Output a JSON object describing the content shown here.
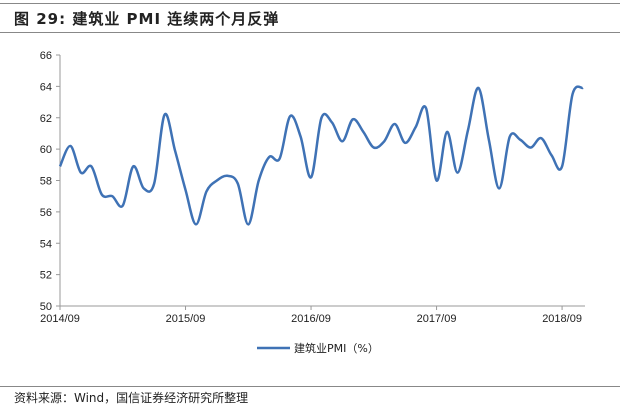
{
  "title": "图 29:  建筑业 PMI 连续两个月反弹",
  "source": "资料来源：Wind，国信证券经济研究所整理",
  "chart_data": {
    "type": "line",
    "title": "",
    "xlabel": "",
    "ylabel": "",
    "ylim": [
      50,
      66
    ],
    "yticks": [
      50,
      52,
      54,
      56,
      58,
      60,
      62,
      64,
      66
    ],
    "x_tick_labels": [
      "2014/09",
      "2015/09",
      "2016/09",
      "2017/09",
      "2018/09"
    ],
    "x_start": "2014/09",
    "x_end": "2018/11",
    "grid": false,
    "legend": "bottom-center",
    "series": [
      {
        "name": "建筑业PMI（%）",
        "color": "#3F72B5",
        "values": [
          58.9,
          60.2,
          58.5,
          58.9,
          57.1,
          57.0,
          56.4,
          58.9,
          57.5,
          57.8,
          62.2,
          59.9,
          57.4,
          55.2,
          57.3,
          58.0,
          58.3,
          57.8,
          55.2,
          58.0,
          59.5,
          59.4,
          62.1,
          60.8,
          58.2,
          62.0,
          61.7,
          60.5,
          61.9,
          61.1,
          60.1,
          60.5,
          61.6,
          60.4,
          61.4,
          62.6,
          58.0,
          61.1,
          58.5,
          61.2,
          63.9,
          60.6,
          57.5,
          60.8,
          60.6,
          60.1,
          60.7,
          59.6,
          58.9,
          63.5,
          63.9
        ]
      }
    ]
  }
}
